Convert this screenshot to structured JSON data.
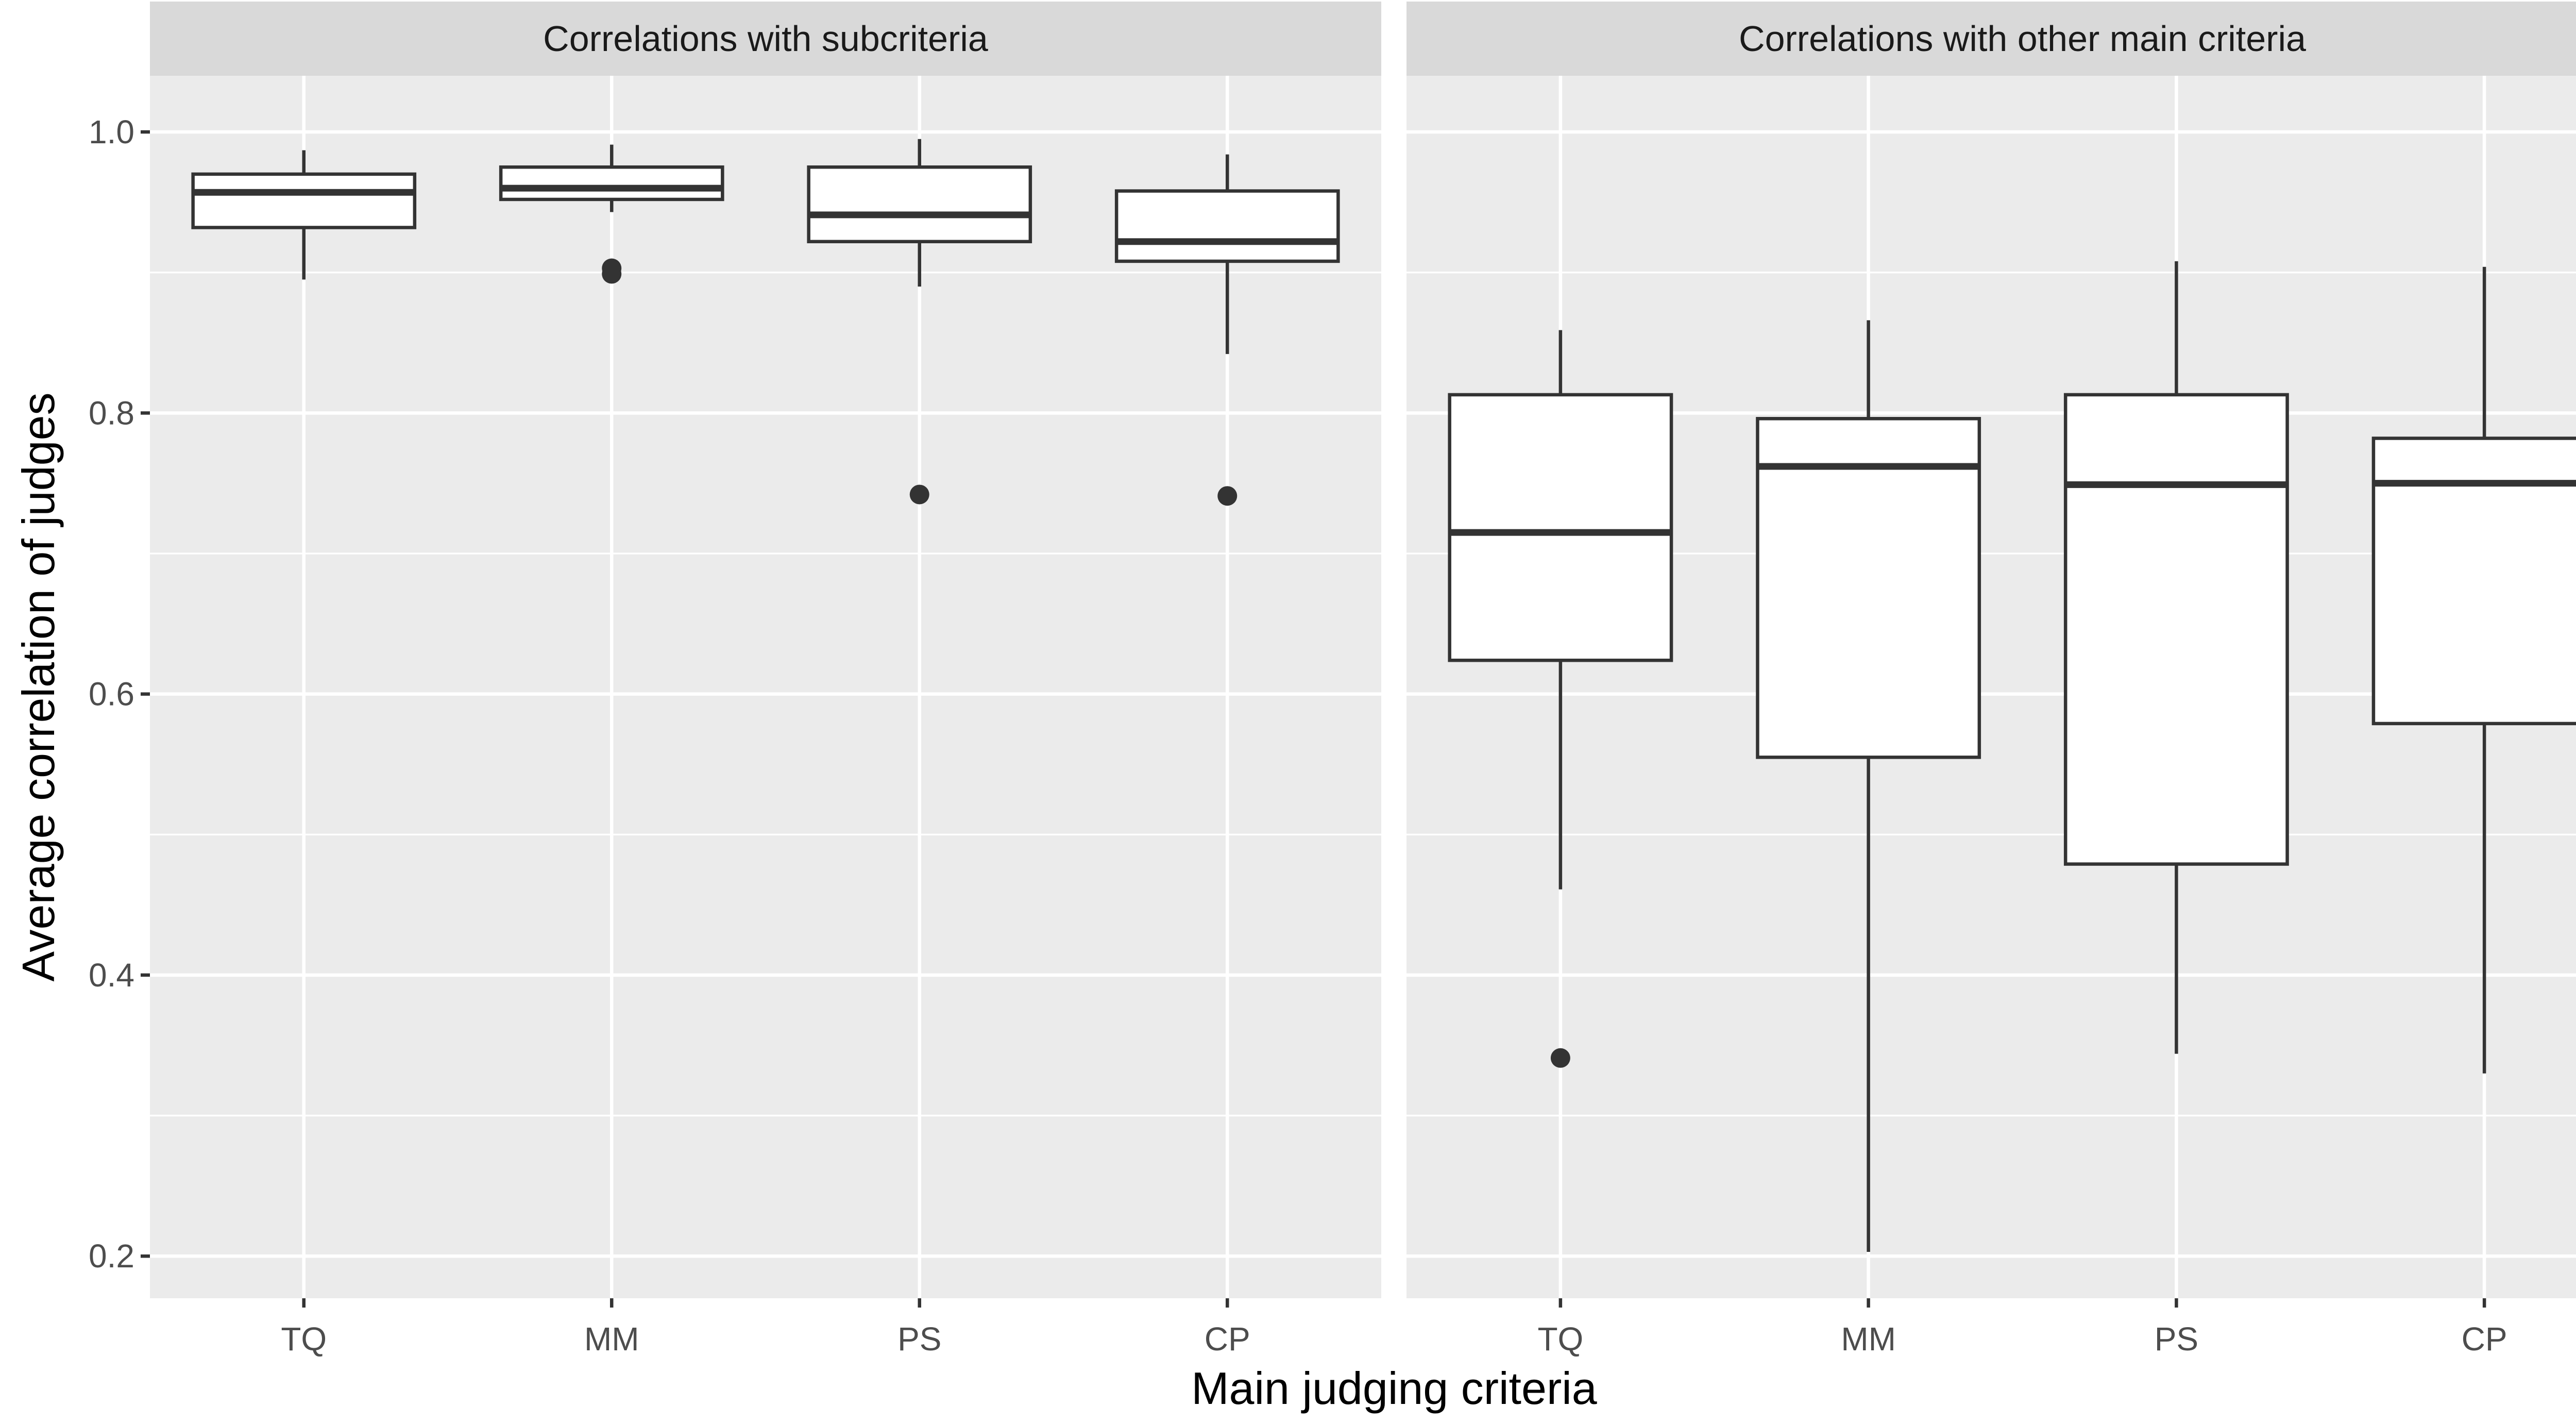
{
  "chart_data": {
    "type": "boxplot",
    "xlabel": "Main judging criteria",
    "ylabel": "Average correlation of judges",
    "ylim": [
      0.17,
      1.04
    ],
    "y_ticks": [
      {
        "value": 0.2,
        "label": "0.2"
      },
      {
        "value": 0.4,
        "label": "0.4"
      },
      {
        "value": 0.6,
        "label": "0.6"
      },
      {
        "value": 0.8,
        "label": "0.8"
      },
      {
        "value": 1.0,
        "label": "1.0"
      }
    ],
    "y_minor_ticks": [
      0.3,
      0.5,
      0.7,
      0.9
    ],
    "categories": [
      "TQ",
      "MM",
      "PS",
      "CP"
    ],
    "grid": true,
    "legend": "none",
    "facets": [
      {
        "strip_label": "Correlations with subcriteria",
        "boxes": [
          {
            "category": "TQ",
            "lower_whisker": 0.895,
            "q1": 0.932,
            "median": 0.957,
            "q3": 0.97,
            "upper_whisker": 0.987,
            "outliers": []
          },
          {
            "category": "MM",
            "lower_whisker": 0.943,
            "q1": 0.952,
            "median": 0.96,
            "q3": 0.975,
            "upper_whisker": 0.991,
            "outliers": [
              0.903,
              0.899
            ]
          },
          {
            "category": "PS",
            "lower_whisker": 0.89,
            "q1": 0.922,
            "median": 0.941,
            "q3": 0.975,
            "upper_whisker": 0.995,
            "outliers": [
              0.742
            ]
          },
          {
            "category": "CP",
            "lower_whisker": 0.842,
            "q1": 0.908,
            "median": 0.922,
            "q3": 0.958,
            "upper_whisker": 0.984,
            "outliers": [
              0.741
            ]
          }
        ]
      },
      {
        "strip_label": "Correlations with other main criteria",
        "boxes": [
          {
            "category": "TQ",
            "lower_whisker": 0.461,
            "q1": 0.624,
            "median": 0.715,
            "q3": 0.813,
            "upper_whisker": 0.859,
            "outliers": [
              0.341
            ]
          },
          {
            "category": "MM",
            "lower_whisker": 0.203,
            "q1": 0.555,
            "median": 0.762,
            "q3": 0.796,
            "upper_whisker": 0.866,
            "outliers": []
          },
          {
            "category": "PS",
            "lower_whisker": 0.344,
            "q1": 0.479,
            "median": 0.749,
            "q3": 0.813,
            "upper_whisker": 0.908,
            "outliers": []
          },
          {
            "category": "CP",
            "lower_whisker": 0.33,
            "q1": 0.579,
            "median": 0.75,
            "q3": 0.782,
            "upper_whisker": 0.904,
            "outliers": []
          }
        ]
      }
    ]
  }
}
